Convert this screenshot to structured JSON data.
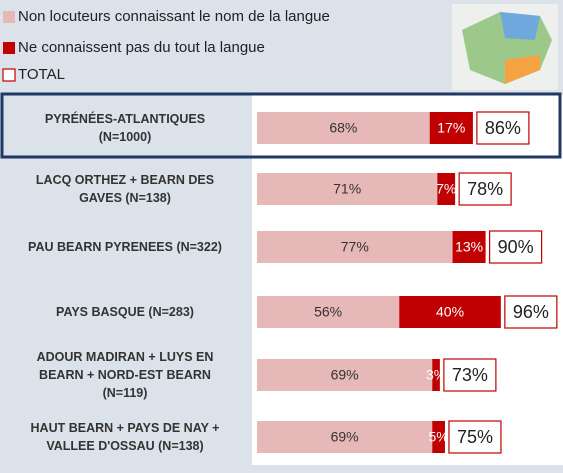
{
  "chart_data": {
    "type": "stacked_bar",
    "categories": [
      "PYRÉNÉES-ATLANTIQUES\n(N=1000)",
      "LACQ ORTHEZ + BEARN DES\nGAVES (N=138)",
      "PAU BEARN PYRENEES (N=322)",
      "PAYS BASQUE (N=283)",
      "ADOUR MADIRAN + LUYS EN\nBEARN + NORD-EST BEARN\n(N=119)",
      "HAUT BEARN + PAYS DE NAY +\nVALLEE D'OSSAU (N=138)"
    ],
    "series": [
      {
        "name": "Non locuteurs connaissant le nom de la langue",
        "color": "#e6b9b8",
        "values": [
          68,
          71,
          77,
          56,
          69,
          69
        ],
        "value_labels": [
          "68%",
          "71%",
          "77%",
          "56%",
          "69%",
          "69%"
        ]
      },
      {
        "name": "Ne connaissent pas du tout la langue",
        "color": "#c00000",
        "values": [
          17,
          7,
          13,
          40,
          3,
          5
        ],
        "value_labels": [
          "17%",
          "7%",
          "13%",
          "40%",
          "3%",
          "5%"
        ]
      },
      {
        "name": "TOTAL",
        "color": "#c00000",
        "values": [
          86,
          78,
          90,
          96,
          73,
          75
        ],
        "value_labels": [
          "86%",
          "78%",
          "90%",
          "96%",
          "73%",
          "75%"
        ]
      }
    ],
    "xlim": [
      0,
      100
    ]
  }
}
